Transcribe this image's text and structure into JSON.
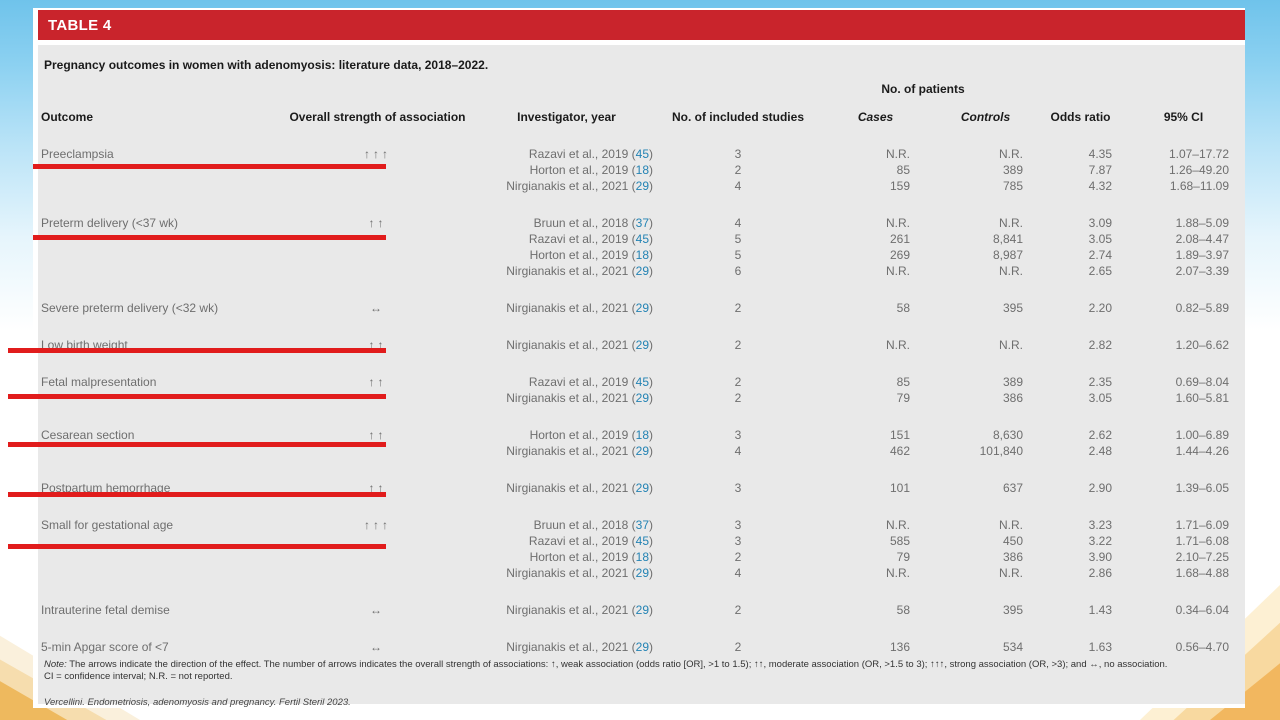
{
  "table": {
    "title": "TABLE 4",
    "caption": "Pregnancy outcomes in women with adenomyosis: literature data, 2018–2022.",
    "patients_header": "No. of patients",
    "columns": [
      "Outcome",
      "Overall strength of association",
      "Investigator, year",
      "No. of included studies",
      "Cases",
      "Controls",
      "Odds ratio",
      "95% CI"
    ],
    "groups": [
      {
        "outcome": "Preeclampsia",
        "strength": "↑↑↑",
        "underline": true,
        "rows": [
          {
            "investigator": "Razavi et al., 2019",
            "ref": "45",
            "studies": "3",
            "cases": "N.R.",
            "controls": "N.R.",
            "or": "4.35",
            "ci": "1.07–17.72"
          },
          {
            "investigator": "Horton et al., 2019",
            "ref": "18",
            "studies": "2",
            "cases": "85",
            "controls": "389",
            "or": "7.87",
            "ci": "1.26–49.20"
          },
          {
            "investigator": "Nirgianakis et al., 2021",
            "ref": "29",
            "studies": "4",
            "cases": "159",
            "controls": "785",
            "or": "4.32",
            "ci": "1.68–11.09"
          }
        ]
      },
      {
        "outcome": "Preterm delivery (<37 wk)",
        "strength": "↑↑",
        "underline": true,
        "rows": [
          {
            "investigator": "Bruun et al., 2018",
            "ref": "37",
            "studies": "4",
            "cases": "N.R.",
            "controls": "N.R.",
            "or": "3.09",
            "ci": "1.88–5.09"
          },
          {
            "investigator": "Razavi et al., 2019",
            "ref": "45",
            "studies": "5",
            "cases": "261",
            "controls": "8,841",
            "or": "3.05",
            "ci": "2.08–4.47"
          },
          {
            "investigator": "Horton et al., 2019",
            "ref": "18",
            "studies": "5",
            "cases": "269",
            "controls": "8,987",
            "or": "2.74",
            "ci": "1.89–3.97"
          },
          {
            "investigator": "Nirgianakis et al., 2021",
            "ref": "29",
            "studies": "6",
            "cases": "N.R.",
            "controls": "N.R.",
            "or": "2.65",
            "ci": "2.07–3.39"
          }
        ]
      },
      {
        "outcome": "Severe preterm delivery (<32 wk)",
        "strength": "↔",
        "underline": false,
        "rows": [
          {
            "investigator": "Nirgianakis et al., 2021",
            "ref": "29",
            "studies": "2",
            "cases": "58",
            "controls": "395",
            "or": "2.20",
            "ci": "0.82–5.89"
          }
        ]
      },
      {
        "outcome": "Low birth weight",
        "strength": "↑↑",
        "underline": true,
        "rows": [
          {
            "investigator": "Nirgianakis et al., 2021",
            "ref": "29",
            "studies": "2",
            "cases": "N.R.",
            "controls": "N.R.",
            "or": "2.82",
            "ci": "1.20–6.62"
          }
        ]
      },
      {
        "outcome": "Fetal malpresentation",
        "strength": "↑↑",
        "underline": true,
        "rows": [
          {
            "investigator": "Razavi et al., 2019",
            "ref": "45",
            "studies": "2",
            "cases": "85",
            "controls": "389",
            "or": "2.35",
            "ci": "0.69–8.04"
          },
          {
            "investigator": "Nirgianakis et al., 2021",
            "ref": "29",
            "studies": "2",
            "cases": "79",
            "controls": "386",
            "or": "3.05",
            "ci": "1.60–5.81"
          }
        ]
      },
      {
        "outcome": "Cesarean section",
        "strength": "↑↑",
        "underline": true,
        "rows": [
          {
            "investigator": "Horton et al., 2019",
            "ref": "18",
            "studies": "3",
            "cases": "151",
            "controls": "8,630",
            "or": "2.62",
            "ci": "1.00–6.89"
          },
          {
            "investigator": "Nirgianakis et al., 2021",
            "ref": "29",
            "studies": "4",
            "cases": "462",
            "controls": "101,840",
            "or": "2.48",
            "ci": "1.44–4.26"
          }
        ]
      },
      {
        "outcome": "Postpartum hemorrhage",
        "strength": "↑↑",
        "underline": true,
        "rows": [
          {
            "investigator": "Nirgianakis et al., 2021",
            "ref": "29",
            "studies": "3",
            "cases": "101",
            "controls": "637",
            "or": "2.90",
            "ci": "1.39–6.05"
          }
        ]
      },
      {
        "outcome": "Small for gestational age",
        "strength": "↑↑↑",
        "underline": true,
        "rows": [
          {
            "investigator": "Bruun et al., 2018",
            "ref": "37",
            "studies": "3",
            "cases": "N.R.",
            "controls": "N.R.",
            "or": "3.23",
            "ci": "1.71–6.09"
          },
          {
            "investigator": "Razavi et al., 2019",
            "ref": "45",
            "studies": "3",
            "cases": "585",
            "controls": "450",
            "or": "3.22",
            "ci": "1.71–6.08"
          },
          {
            "investigator": "Horton et al., 2019",
            "ref": "18",
            "studies": "2",
            "cases": "79",
            "controls": "386",
            "or": "3.90",
            "ci": "2.10–7.25"
          },
          {
            "investigator": "Nirgianakis et al., 2021",
            "ref": "29",
            "studies": "4",
            "cases": "N.R.",
            "controls": "N.R.",
            "or": "2.86",
            "ci": "1.68–4.88"
          }
        ]
      },
      {
        "outcome": "Intrauterine fetal demise",
        "strength": "↔",
        "underline": false,
        "rows": [
          {
            "investigator": "Nirgianakis et al., 2021",
            "ref": "29",
            "studies": "2",
            "cases": "58",
            "controls": "395",
            "or": "1.43",
            "ci": "0.34–6.04"
          }
        ]
      },
      {
        "outcome": "5-min Apgar score of <7",
        "strength": "↔",
        "underline": false,
        "rows": [
          {
            "investigator": "Nirgianakis et al., 2021",
            "ref": "29",
            "studies": "2",
            "cases": "136",
            "controls": "534",
            "or": "1.63",
            "ci": "0.56–4.70"
          }
        ]
      }
    ],
    "note_label": "Note:",
    "note_line1": "The arrows indicate the direction of the effect. The number of arrows indicates the overall strength of associations: ↑, weak association (odds ratio [OR], >1 to 1.5); ↑↑, moderate association (OR, >1.5 to 3); ↑↑↑, strong association (OR, >3); and ↔, no association.",
    "note_line2": "CI = confidence interval; N.R. = not reported.",
    "source": "Vercellini. Endometriosis, adenomyosis and pregnancy. Fertil Steril 2023."
  },
  "colors": {
    "accent_red": "#c9242c",
    "annotation_red": "#e11c1c",
    "citation_blue": "#2383b4",
    "panel_gray": "#e9e9e9"
  }
}
